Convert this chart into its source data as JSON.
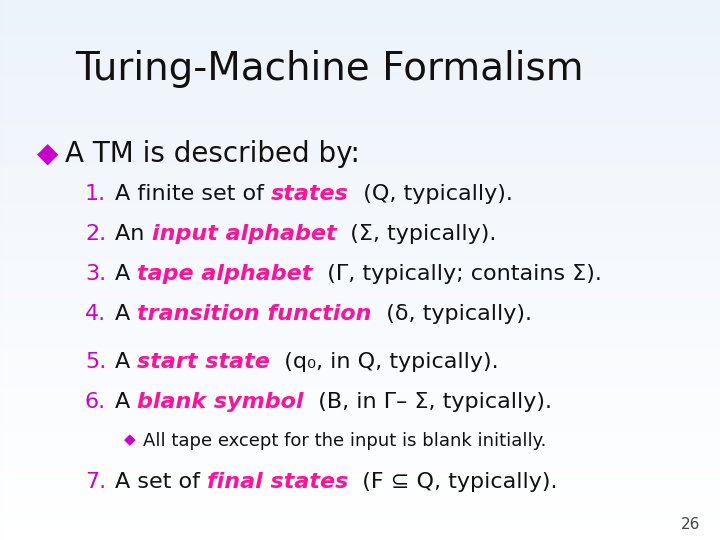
{
  "title": "Turing-Machine Formalism",
  "bg_top_color": "#e8eff8",
  "bg_bottom_color": "#d0def2",
  "title_color": "#111111",
  "bullet_color": "#cc00cc",
  "number_color": "#cc00cc",
  "italic_color": "#ff1199",
  "body_color": "#111111",
  "slide_number": "26",
  "bullet_text": "A TM is described by:",
  "items": [
    {
      "num": "1.",
      "pre": "A finite set of ",
      "italic": "states",
      "post": "  (Q, typically)."
    },
    {
      "num": "2.",
      "pre": "An ",
      "italic": "input alphabet",
      "post": "  (Σ, typically)."
    },
    {
      "num": "3.",
      "pre": "A ",
      "italic": "tape alphabet",
      "post": "  (Γ, typically; contains Σ)."
    },
    {
      "num": "4.",
      "pre": "A ",
      "italic": "transition function",
      "post": "  (δ, typically)."
    },
    {
      "num": "5.",
      "pre": "A ",
      "italic": "start state",
      "post": "  (q₀, in Q, typically)."
    },
    {
      "num": "6.",
      "pre": "A ",
      "italic": "blank symbol",
      "post": "  (B, in Γ– Σ, typically)."
    },
    {
      "num": "◆",
      "pre": "All tape except for the input is blank initially.",
      "italic": "",
      "post": "",
      "is_bullet": true
    },
    {
      "num": "7.",
      "pre": "A set of ",
      "italic": "final states",
      "post": "  (F ⊆ Q, typically)."
    }
  ],
  "title_fontsize": 28,
  "bullet_fontsize": 20,
  "item_fontsize": 16,
  "sub_bullet_fontsize": 13
}
